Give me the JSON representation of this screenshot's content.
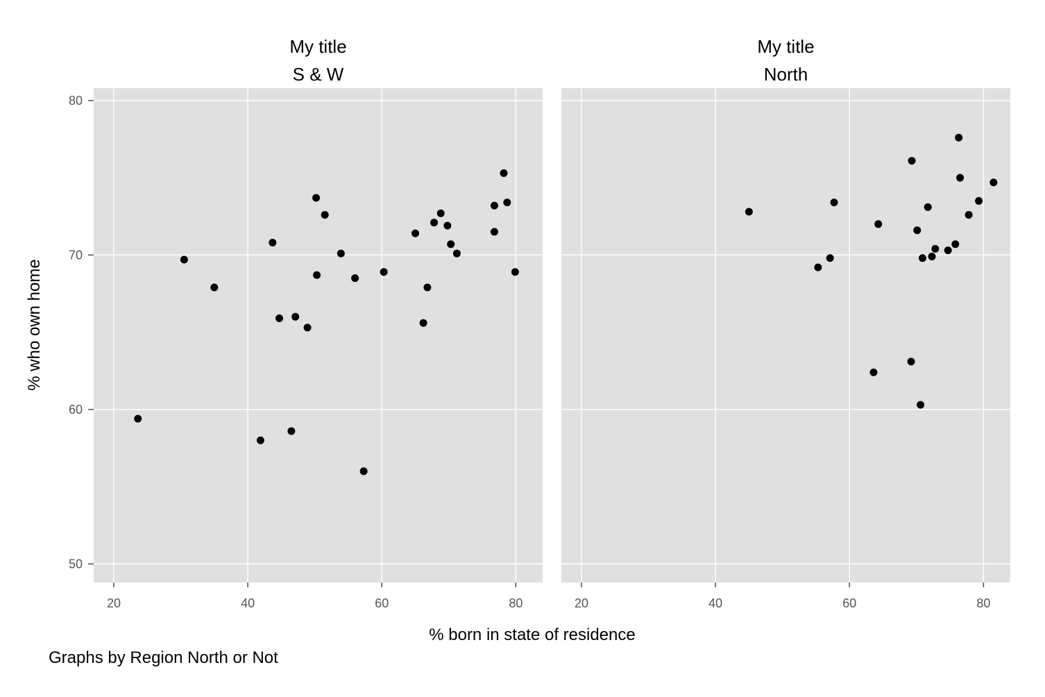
{
  "chart_data": {
    "type": "scatter",
    "xlabel": "% born in state of residence",
    "ylabel": "% who own home",
    "note": "Graphs by Region North or Not",
    "xlim": [
      17,
      84
    ],
    "ylim": [
      48.8,
      80.8
    ],
    "x_ticks": [
      20,
      40,
      60,
      80
    ],
    "y_ticks": [
      50,
      60,
      70,
      80
    ],
    "grid": true,
    "colors": {
      "panel": "#e0e0e0",
      "grid": "#ffffff",
      "marker": "#000000"
    },
    "panels": [
      {
        "title": "My title",
        "subtitle": "S & W",
        "points": [
          [
            23.6,
            59.4
          ],
          [
            30.5,
            69.7
          ],
          [
            35.0,
            67.9
          ],
          [
            41.9,
            58.0
          ],
          [
            43.7,
            70.8
          ],
          [
            44.7,
            65.9
          ],
          [
            46.5,
            58.6
          ],
          [
            47.1,
            66.0
          ],
          [
            48.9,
            65.3
          ],
          [
            50.2,
            73.7
          ],
          [
            50.3,
            68.7
          ],
          [
            51.5,
            72.6
          ],
          [
            53.9,
            70.1
          ],
          [
            56.0,
            68.5
          ],
          [
            57.3,
            56.0
          ],
          [
            60.3,
            68.9
          ],
          [
            65.0,
            71.4
          ],
          [
            66.2,
            65.6
          ],
          [
            66.8,
            67.9
          ],
          [
            67.8,
            72.1
          ],
          [
            68.8,
            72.7
          ],
          [
            69.8,
            71.9
          ],
          [
            70.3,
            70.7
          ],
          [
            71.2,
            70.1
          ],
          [
            76.8,
            73.2
          ],
          [
            76.8,
            71.5
          ],
          [
            78.2,
            75.3
          ],
          [
            78.7,
            73.4
          ],
          [
            79.9,
            68.9
          ]
        ]
      },
      {
        "title": "My title",
        "subtitle": "North",
        "points": [
          [
            45.0,
            72.8
          ],
          [
            55.3,
            69.2
          ],
          [
            57.1,
            69.8
          ],
          [
            57.7,
            73.4
          ],
          [
            63.6,
            62.4
          ],
          [
            64.3,
            72.0
          ],
          [
            69.2,
            63.1
          ],
          [
            69.3,
            76.1
          ],
          [
            70.1,
            71.6
          ],
          [
            70.6,
            60.3
          ],
          [
            70.9,
            69.8
          ],
          [
            71.7,
            73.1
          ],
          [
            72.3,
            69.9
          ],
          [
            72.8,
            70.4
          ],
          [
            74.7,
            70.3
          ],
          [
            75.8,
            70.7
          ],
          [
            76.3,
            77.6
          ],
          [
            76.5,
            75.0
          ],
          [
            77.8,
            72.6
          ],
          [
            79.3,
            73.5
          ],
          [
            81.5,
            74.7
          ]
        ]
      }
    ]
  }
}
